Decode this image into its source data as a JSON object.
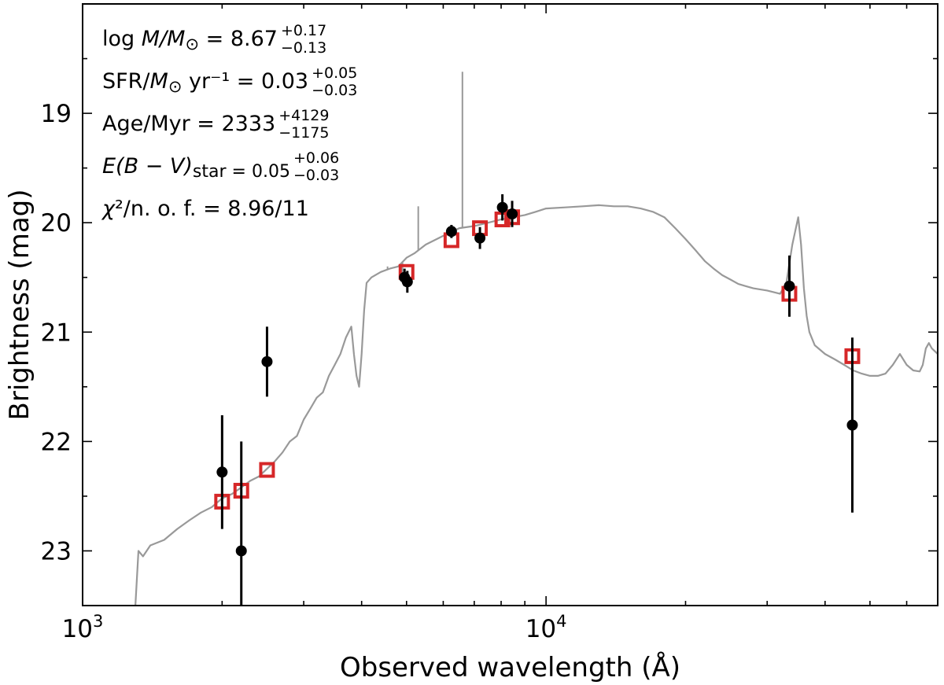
{
  "chart_data": {
    "type": "scatter",
    "xscale": "log",
    "xlabel": "Observed wavelength (Å)",
    "ylabel": "Brightness (mag)",
    "xlim": [
      1000,
      70000
    ],
    "ylim": [
      23.5,
      18.0
    ],
    "yinverted": true,
    "xticks": [
      {
        "value": 1000,
        "label_base": "10",
        "label_exp": "3"
      },
      {
        "value": 10000,
        "label_base": "10",
        "label_exp": "4"
      }
    ],
    "yticks": [
      19,
      20,
      21,
      22,
      23
    ],
    "annotations": [
      {
        "prefix": "log ",
        "italic": "M/M",
        "sun": "⊙",
        "rest": " = 8.67",
        "sup": "+0.17",
        "sub": "−0.13"
      },
      {
        "prefix": "SFR/",
        "italic": "M",
        "sun": "⊙",
        "rest": " yr⁻¹ = 0.03",
        "sup": "+0.05",
        "sub": "−0.03"
      },
      {
        "prefix": "Age/Myr = 2333",
        "italic": "",
        "sun": "",
        "rest": "",
        "sup": "+4129",
        "sub": "−1175"
      },
      {
        "prefix": "",
        "italic": "E(B − V)",
        "sun": "",
        "rest": "star = 0.05",
        "sup": "+0.06",
        "sub": "−0.03"
      },
      {
        "prefix": "",
        "italic": "χ",
        "sun": "",
        "rest": "²/n. o. f. = 8.96/11",
        "sup": "",
        "sub": ""
      }
    ],
    "model_spectrum": {
      "name": "best-fit SED",
      "color": "#999999",
      "x": [
        1300,
        1320,
        1350,
        1400,
        1500,
        1600,
        1700,
        1800,
        1900,
        2000,
        2100,
        2200,
        2300,
        2400,
        2500,
        2600,
        2700,
        2800,
        2900,
        3000,
        3100,
        3200,
        3300,
        3400,
        3500,
        3600,
        3700,
        3800,
        3850,
        3900,
        3950,
        4000,
        4050,
        4100,
        4200,
        4400,
        4600,
        4800,
        5000,
        5200,
        5500,
        6000,
        6500,
        7000,
        7500,
        8000,
        8500,
        9000,
        9500,
        10000,
        11000,
        12000,
        13000,
        14000,
        15000,
        16000,
        17000,
        18000,
        19000,
        20000,
        21000,
        22000,
        23000,
        24000,
        25000,
        26000,
        27000,
        28000,
        30000,
        32000,
        33000,
        34000,
        35000,
        35500,
        36000,
        36500,
        37000,
        38000,
        40000,
        42000,
        44000,
        46000,
        48000,
        50000,
        52000,
        54000,
        56000,
        58000,
        60000,
        62000,
        64000,
        65000,
        66000,
        67000,
        68000,
        70000
      ],
      "y": [
        23.5,
        23.0,
        23.05,
        22.95,
        22.9,
        22.8,
        22.72,
        22.65,
        22.6,
        22.52,
        22.48,
        22.42,
        22.36,
        22.32,
        22.25,
        22.18,
        22.1,
        22.0,
        21.95,
        21.8,
        21.7,
        21.6,
        21.55,
        21.4,
        21.3,
        21.2,
        21.05,
        20.95,
        21.2,
        21.4,
        21.5,
        21.2,
        20.8,
        20.55,
        20.5,
        20.45,
        20.42,
        20.4,
        20.32,
        20.28,
        20.2,
        20.12,
        20.05,
        20.03,
        20.0,
        19.97,
        19.95,
        19.93,
        19.9,
        19.87,
        19.86,
        19.85,
        19.84,
        19.85,
        19.85,
        19.87,
        19.9,
        19.95,
        20.05,
        20.15,
        20.25,
        20.35,
        20.42,
        20.48,
        20.52,
        20.56,
        20.58,
        20.6,
        20.62,
        20.65,
        20.55,
        20.2,
        19.95,
        20.2,
        20.6,
        20.85,
        21.0,
        21.12,
        21.2,
        21.25,
        21.3,
        21.35,
        21.38,
        21.4,
        21.4,
        21.38,
        21.3,
        21.2,
        21.3,
        21.35,
        21.36,
        21.3,
        21.15,
        21.1,
        21.15,
        21.2
      ],
      "lines": [
        {
          "x": 4550,
          "peak": 20.4
        },
        {
          "x": 4900,
          "peak": 20.55
        },
        {
          "x": 5300,
          "peak": 19.85
        },
        {
          "x": 6600,
          "peak": 18.62
        }
      ]
    },
    "series": [
      {
        "name": "model photometry",
        "marker": "open-square",
        "color": "#d62728",
        "points": [
          {
            "x": 2000,
            "y": 22.55
          },
          {
            "x": 2200,
            "y": 22.45
          },
          {
            "x": 2500,
            "y": 22.26
          },
          {
            "x": 5000,
            "y": 20.45
          },
          {
            "x": 6250,
            "y": 20.16
          },
          {
            "x": 7200,
            "y": 20.05
          },
          {
            "x": 8050,
            "y": 19.97
          },
          {
            "x": 8450,
            "y": 19.95
          },
          {
            "x": 33500,
            "y": 20.65
          },
          {
            "x": 45800,
            "y": 21.22
          }
        ]
      },
      {
        "name": "observed photometry",
        "marker": "filled-circle",
        "color": "#000000",
        "points": [
          {
            "x": 2000,
            "y": 22.28,
            "yerr": 0.52
          },
          {
            "x": 2200,
            "y": 23.0,
            "yerr": 1.0
          },
          {
            "x": 2500,
            "y": 21.27,
            "yerr": 0.32
          },
          {
            "x": 4950,
            "y": 20.5,
            "yerr": 0.08
          },
          {
            "x": 5020,
            "y": 20.54,
            "yerr": 0.1
          },
          {
            "x": 6250,
            "y": 20.08,
            "yerr": 0.06
          },
          {
            "x": 7200,
            "y": 20.14,
            "yerr": 0.1
          },
          {
            "x": 8050,
            "y": 19.86,
            "yerr": 0.12
          },
          {
            "x": 8450,
            "y": 19.92,
            "yerr": 0.12
          },
          {
            "x": 33500,
            "y": 20.58,
            "yerr": 0.28
          },
          {
            "x": 45800,
            "y": 21.85,
            "yerr": 0.8
          }
        ]
      }
    ]
  }
}
